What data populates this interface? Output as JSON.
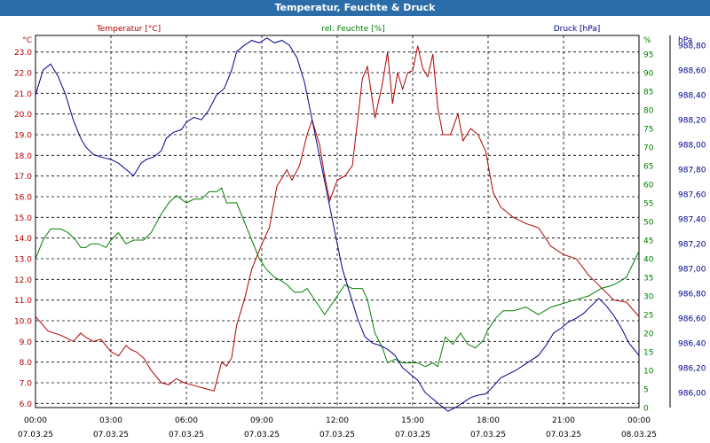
{
  "window": {
    "title": "Temperatur, Feuchte & Druck"
  },
  "chart_data": {
    "type": "line",
    "title": "Temperatur, Feuchte & Druck",
    "x_ticks": [
      {
        "time": "00:00",
        "date": "07.03.25"
      },
      {
        "time": "03:00",
        "date": "07.03.25"
      },
      {
        "time": "06:00",
        "date": "07.03.25"
      },
      {
        "time": "09:00",
        "date": "07.03.25"
      },
      {
        "time": "12:00",
        "date": "07.03.25"
      },
      {
        "time": "15:00",
        "date": "07.03.25"
      },
      {
        "time": "18:00",
        "date": "07.03.25"
      },
      {
        "time": "21:00",
        "date": "07.03.25"
      },
      {
        "time": "00:00",
        "date": "08.03.25"
      }
    ],
    "xlim_hours": [
      0,
      24
    ],
    "grid": true,
    "axes": {
      "temperature": {
        "unit": "°C",
        "ylim": [
          5.8,
          23.8
        ],
        "ticks": [
          "6.0",
          "7.0",
          "8.0",
          "9.0",
          "10.0",
          "11.0",
          "12.0",
          "13.0",
          "14.0",
          "15.0",
          "16.0",
          "17.0",
          "18.0",
          "19.0",
          "20.0",
          "21.0",
          "22.0",
          "23.0"
        ],
        "color": "#b00000"
      },
      "humidity": {
        "unit": "%",
        "ylim": [
          0,
          100
        ],
        "ticks": [
          "0",
          "5",
          "10",
          "15",
          "20",
          "25",
          "30",
          "35",
          "40",
          "45",
          "50",
          "55",
          "60",
          "65",
          "70",
          "75",
          "80",
          "85",
          "90",
          "95",
          "%"
        ],
        "color": "#008000"
      },
      "pressure": {
        "unit": "hPa",
        "ylim": [
          985.88,
          988.88
        ],
        "ticks": [
          "986,00",
          "986,20",
          "986,40",
          "986,60",
          "986,80",
          "987,00",
          "987,20",
          "987,40",
          "987,60",
          "987,80",
          "988,00",
          "988,20",
          "988,40",
          "988,60",
          "988,80",
          "hPa"
        ],
        "color": "#00008b"
      }
    },
    "series": [
      {
        "name": "Temperatur [°C]",
        "axis": "temperature",
        "color": "#b00000",
        "x": [
          0,
          0.5,
          1,
          1.5,
          1.8,
          2,
          2.3,
          2.6,
          3,
          3.3,
          3.6,
          3.8,
          4,
          4.3,
          4.6,
          5,
          5.3,
          5.6,
          5.9,
          6.2,
          6.5,
          6.8,
          7.1,
          7.4,
          7.6,
          7.8,
          8,
          8.3,
          8.6,
          9,
          9.3,
          9.6,
          10,
          10.2,
          10.5,
          10.8,
          11,
          11.3,
          11.5,
          11.7,
          12,
          12.3,
          12.6,
          13,
          13.2,
          13.5,
          13.8,
          14,
          14.2,
          14.4,
          14.6,
          14.8,
          15,
          15.2,
          15.4,
          15.6,
          15.8,
          16,
          16.2,
          16.5,
          16.8,
          17,
          17.3,
          17.6,
          17.9,
          18.2,
          18.5,
          19,
          19.5,
          20,
          20.5,
          21,
          21.5,
          22,
          22.5,
          23,
          23.5,
          24
        ],
        "y": [
          10.2,
          9.5,
          9.3,
          9.0,
          9.4,
          9.2,
          9.0,
          9.1,
          8.5,
          8.3,
          8.8,
          8.6,
          8.5,
          8.2,
          7.6,
          7.0,
          6.9,
          7.2,
          7.0,
          6.9,
          6.8,
          6.7,
          6.6,
          8.0,
          7.8,
          8.2,
          9.8,
          11.0,
          12.5,
          13.7,
          14.5,
          16.5,
          17.3,
          16.8,
          17.5,
          19.0,
          19.7,
          18.5,
          17.0,
          15.8,
          16.8,
          17.0,
          17.5,
          21.7,
          22.3,
          19.8,
          21.5,
          23.0,
          20.5,
          22.0,
          21.2,
          22.0,
          22.1,
          23.3,
          22.2,
          21.8,
          22.9,
          20.3,
          19.0,
          19.0,
          20.0,
          18.7,
          19.3,
          19.0,
          18.2,
          16.2,
          15.5,
          15.0,
          14.7,
          14.5,
          13.6,
          13.2,
          13.0,
          12.2,
          11.6,
          11.0,
          10.9,
          10.2
        ]
      },
      {
        "name": "rel. Feuchte [%]",
        "axis": "humidity",
        "color": "#008000",
        "x": [
          0,
          0.3,
          0.6,
          1,
          1.3,
          1.6,
          1.8,
          2,
          2.2,
          2.5,
          2.8,
          3,
          3.3,
          3.6,
          3.9,
          4.3,
          4.6,
          5,
          5.3,
          5.6,
          6,
          6.3,
          6.6,
          6.9,
          7.2,
          7.4,
          7.6,
          7.8,
          8,
          8.3,
          8.6,
          8.9,
          9.2,
          9.5,
          9.8,
          10,
          10.3,
          10.6,
          10.8,
          11,
          11.3,
          11.5,
          11.7,
          12,
          12.3,
          12.6,
          13,
          13.2,
          13.5,
          13.8,
          14,
          14.3,
          14.6,
          14.9,
          15.2,
          15.5,
          15.8,
          16,
          16.3,
          16.6,
          16.9,
          17.2,
          17.5,
          17.8,
          18,
          18.3,
          18.6,
          19,
          19.5,
          20,
          20.5,
          21,
          21.5,
          22,
          22.5,
          23,
          23.5,
          24
        ],
        "y": [
          40,
          45,
          48,
          48,
          47,
          45,
          43,
          43,
          44,
          44,
          43,
          45,
          47,
          44,
          45,
          45,
          47,
          52,
          55,
          57,
          55,
          56,
          56,
          58,
          58,
          59,
          55,
          55,
          55,
          50,
          45,
          40,
          37,
          35,
          34,
          33,
          31,
          31,
          32,
          30,
          27,
          25,
          27,
          30,
          33,
          32,
          32,
          29,
          20,
          16,
          12,
          13,
          12,
          12,
          12,
          11,
          12,
          11,
          19,
          17,
          20,
          17,
          16,
          18,
          21,
          24,
          26,
          26,
          27,
          25,
          27,
          28,
          29,
          30,
          32,
          33,
          35,
          42
        ]
      },
      {
        "name": "Druck [hPa]",
        "axis": "pressure",
        "color": "#00008b",
        "x": [
          0,
          0.3,
          0.6,
          0.9,
          1.2,
          1.5,
          1.8,
          2,
          2.3,
          2.6,
          3,
          3.3,
          3.6,
          3.9,
          4.2,
          4.4,
          4.7,
          5,
          5.2,
          5.5,
          5.8,
          6,
          6.3,
          6.6,
          6.9,
          7.2,
          7.5,
          7.8,
          8,
          8.3,
          8.6,
          8.9,
          9.2,
          9.5,
          9.8,
          10.1,
          10.4,
          10.7,
          11,
          11.3,
          11.6,
          11.9,
          12.2,
          12.5,
          12.8,
          13.1,
          13.4,
          13.7,
          14,
          14.3,
          14.6,
          14.9,
          15.2,
          15.5,
          15.8,
          16.1,
          16.4,
          16.7,
          17,
          17.3,
          17.6,
          17.9,
          18.2,
          18.5,
          18.8,
          19.1,
          19.4,
          19.7,
          20,
          20.3,
          20.6,
          20.9,
          21.2,
          21.5,
          21.8,
          22.1,
          22.4,
          22.7,
          23,
          23.3,
          23.6,
          24
        ],
        "y": [
          988.4,
          988.6,
          988.65,
          988.55,
          988.4,
          988.2,
          988.05,
          987.98,
          987.92,
          987.9,
          987.88,
          987.85,
          987.8,
          987.75,
          987.85,
          987.88,
          987.9,
          987.95,
          988.05,
          988.1,
          988.12,
          988.18,
          988.22,
          988.2,
          988.28,
          988.4,
          988.45,
          988.6,
          988.75,
          988.8,
          988.84,
          988.82,
          988.86,
          988.82,
          988.84,
          988.8,
          988.7,
          988.5,
          988.2,
          987.9,
          987.6,
          987.3,
          987.0,
          986.8,
          986.6,
          986.45,
          986.4,
          986.38,
          986.35,
          986.3,
          986.2,
          986.15,
          986.1,
          986.0,
          985.95,
          985.9,
          985.85,
          985.88,
          985.92,
          985.96,
          985.98,
          985.99,
          986.05,
          986.12,
          986.15,
          986.18,
          986.22,
          986.26,
          986.3,
          986.38,
          986.48,
          986.52,
          986.57,
          986.6,
          986.64,
          986.7,
          986.76,
          986.7,
          986.62,
          986.52,
          986.4,
          986.3
        ]
      }
    ]
  }
}
